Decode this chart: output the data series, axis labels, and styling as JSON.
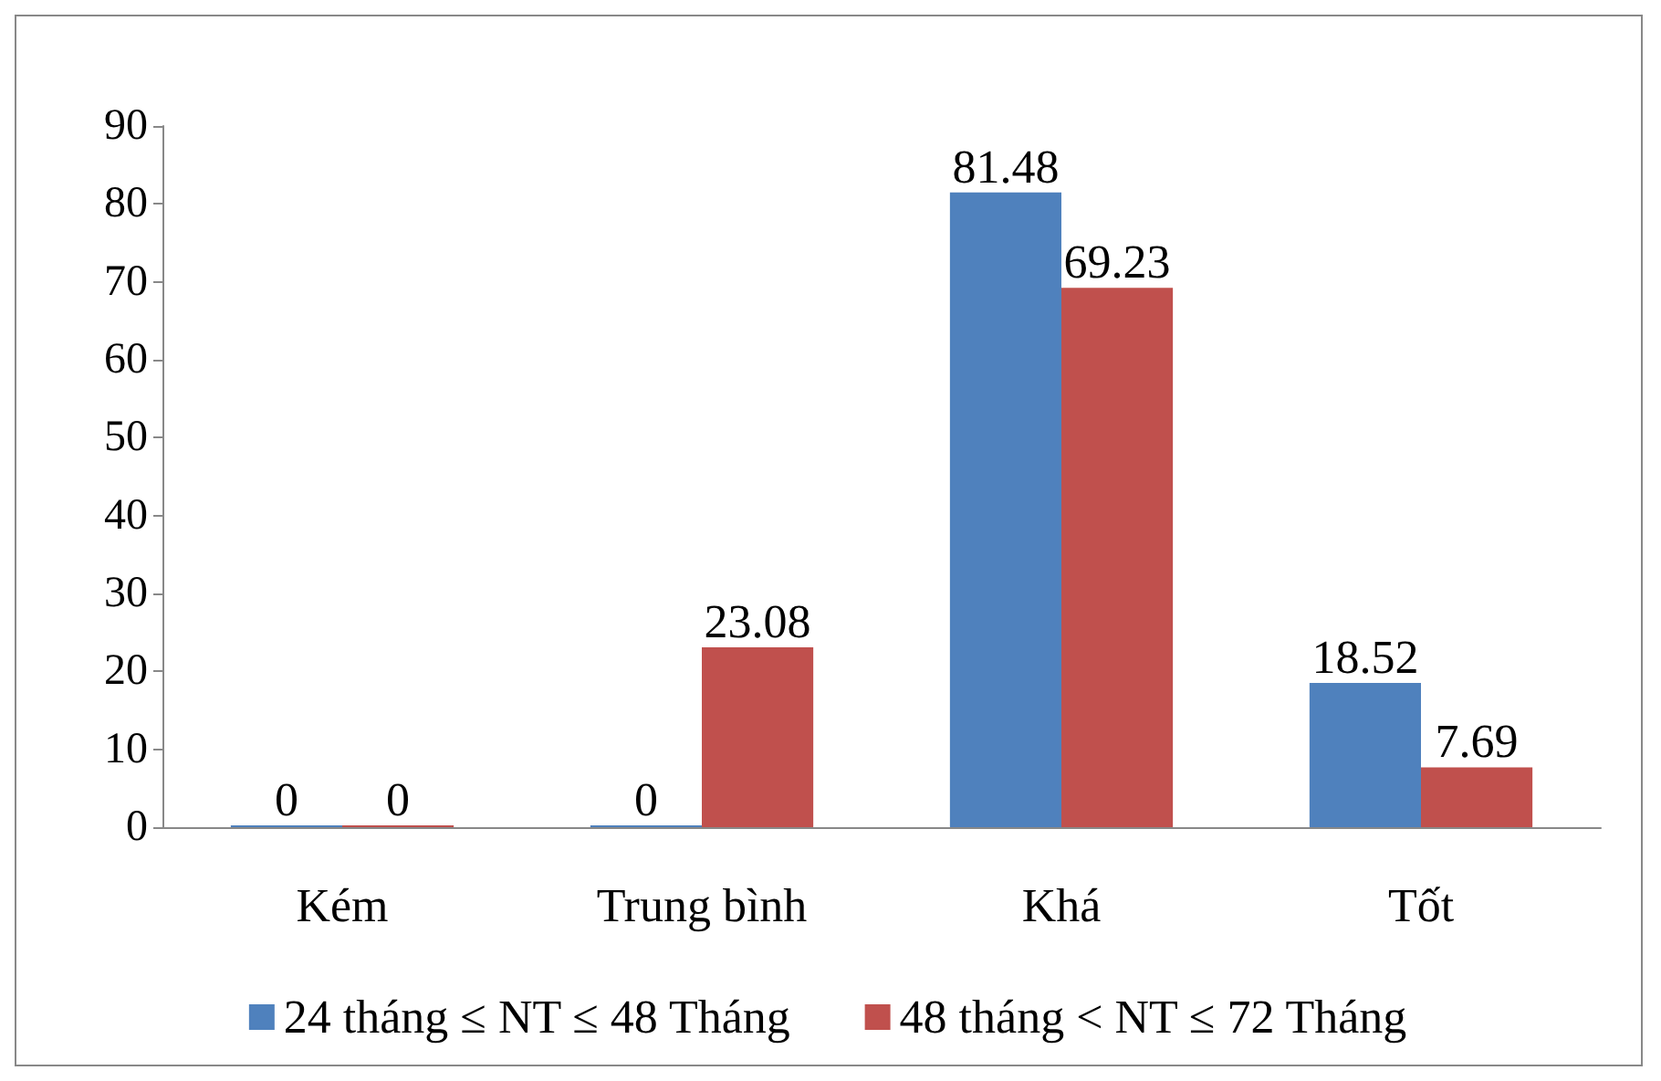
{
  "chart_data": {
    "type": "bar",
    "categories": [
      "Kém",
      "Trung bình",
      "Khá",
      "Tốt"
    ],
    "series": [
      {
        "name": "24 tháng ≤ NT ≤ 48 Tháng",
        "color": "#4f81bd",
        "values": [
          0,
          0,
          81.48,
          18.52
        ]
      },
      {
        "name": "48 tháng < NT ≤ 72 Tháng",
        "color": "#c0504d",
        "values": [
          0,
          23.08,
          69.23,
          7.69
        ]
      }
    ],
    "ylim": [
      0,
      90
    ],
    "yticks": [
      0,
      10,
      20,
      30,
      40,
      50,
      60,
      70,
      80,
      90
    ],
    "grid": false,
    "legend": "bottom",
    "data_labels": true
  }
}
